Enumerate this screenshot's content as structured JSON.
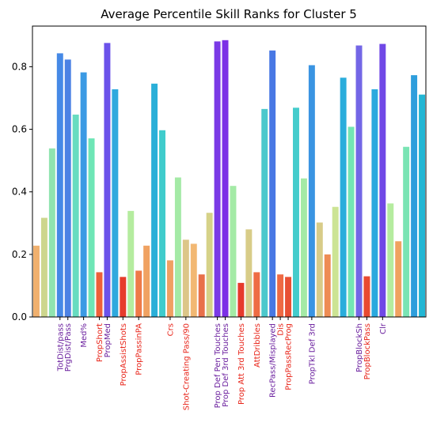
{
  "chart_data": {
    "type": "bar",
    "title": "Average Percentile Skill Ranks for Cluster 5",
    "xlabel": "",
    "ylabel": "",
    "ylim": [
      0,
      0.93
    ],
    "yticks": [
      "0.0",
      "0.2",
      "0.4",
      "0.6",
      "0.8"
    ],
    "grid": false,
    "values": [
      0.228,
      0.317,
      0.539,
      0.843,
      0.823,
      0.647,
      0.782,
      0.571,
      0.143,
      0.876,
      0.728,
      0.128,
      0.339,
      0.148,
      0.228,
      0.746,
      0.597,
      0.181,
      0.446,
      0.247,
      0.234,
      0.136,
      0.333,
      0.881,
      0.885,
      0.419,
      0.109,
      0.28,
      0.143,
      0.665,
      0.852,
      0.136,
      0.128,
      0.669,
      0.443,
      0.805,
      0.302,
      0.2,
      0.352,
      0.765,
      0.608,
      0.868,
      0.13,
      0.728,
      0.873,
      0.363,
      0.242,
      0.544,
      0.773,
      0.711
    ],
    "colors": [
      "#f0b06e",
      "#cdd68d",
      "#90e4b0",
      "#4689e6",
      "#4c82e4",
      "#67dcc0",
      "#3b9ae4",
      "#6ee6b6",
      "#ee6039",
      "#6b52ea",
      "#2fa9de",
      "#e63c2c",
      "#b5ec9f",
      "#ee7a48",
      "#f0a262",
      "#2aafd8",
      "#3fcccc",
      "#f0a062",
      "#a4eaa6",
      "#dcc688",
      "#f2b873",
      "#e8704a",
      "#d6d288",
      "#7a3ae6",
      "#7c30e6",
      "#a4eaa6",
      "#e63a2c",
      "#d8cc88",
      "#ee6c44",
      "#4cc8cc",
      "#4878e4",
      "#ee6a44",
      "#e85034",
      "#44cccc",
      "#a4eaa6",
      "#3a94e2",
      "#d8cc88",
      "#ee8c54",
      "#cce494",
      "#2aaddc",
      "#73e6b4",
      "#7366e6",
      "#e84a32",
      "#2aa9de",
      "#7048e6",
      "#b5ec9f",
      "#f0a260",
      "#7ae4b4",
      "#2e9edc",
      "#22b6d4"
    ],
    "categories": [
      "",
      "",
      "",
      "TotDist/pass",
      "PrgDist/Pass",
      "",
      "Med%",
      "",
      "PropShort",
      "PropMed",
      "",
      "PropAssistShots",
      "",
      "PropPassinPA",
      "",
      "",
      "",
      "Crs",
      "",
      "Shot-Creating Pass/90",
      "",
      "",
      "",
      "Prop Def Pen Touches",
      "Prop Def 3rd Touches",
      "",
      "Prop Att 3rd Touches",
      "",
      "AttDribbles",
      "",
      "RecPass/Misplayed",
      "Dis",
      "PropPassRecProg",
      "",
      "",
      "PropTkl Def 3rd",
      "",
      "",
      "",
      "",
      "",
      "PropBlockSh",
      "PropBlockPass",
      "",
      "Clr",
      "",
      "",
      "",
      "",
      ""
    ],
    "label_colors": [
      "",
      "",
      "",
      "#6a1f9e",
      "#6a1f9e",
      "",
      "#6a1f9e",
      "",
      "#e8251a",
      "#6a1f9e",
      "",
      "#e8251a",
      "",
      "#e8251a",
      "",
      "",
      "",
      "#e8251a",
      "",
      "#e8251a",
      "",
      "",
      "",
      "#6a1f9e",
      "#6a1f9e",
      "",
      "#e8251a",
      "",
      "#e8251a",
      "",
      "#6a1f9e",
      "#e8251a",
      "#e8251a",
      "",
      "",
      "#6a1f9e",
      "",
      "",
      "",
      "",
      "",
      "#6a1f9e",
      "#e8251a",
      "",
      "#6a1f9e",
      "",
      "",
      "",
      "",
      ""
    ]
  }
}
